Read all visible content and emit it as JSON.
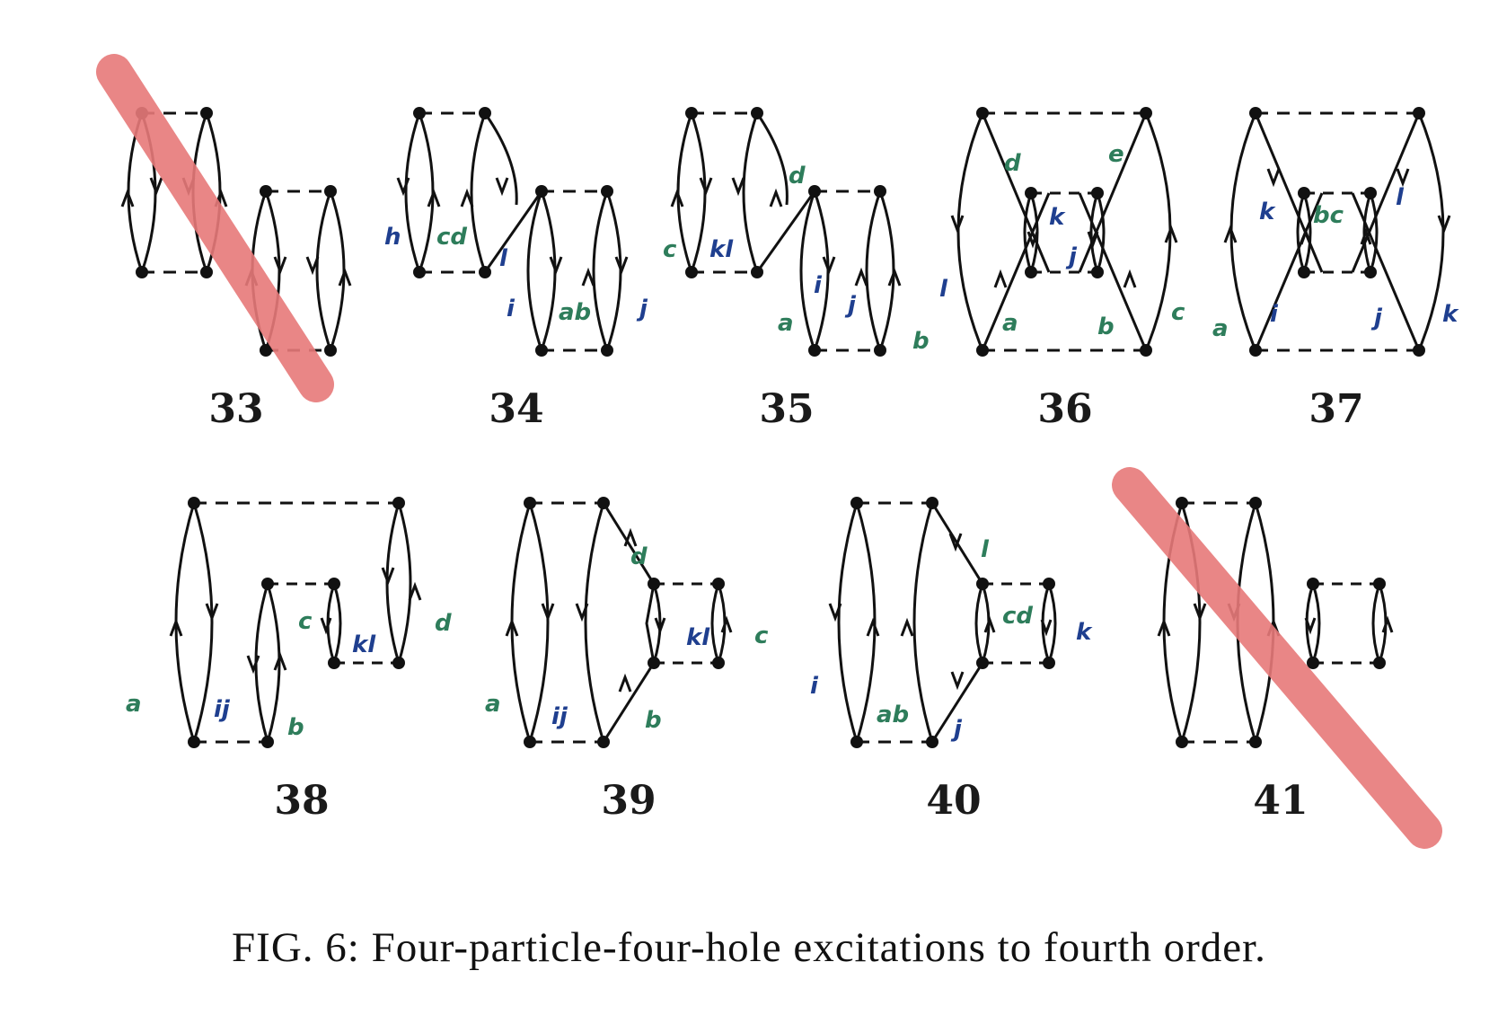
{
  "figure": {
    "caption": "FIG. 6: Four-particle-four-hole excitations to fourth order.",
    "diagram_numbers": [
      "33",
      "34",
      "35",
      "36",
      "37",
      "38",
      "39",
      "40",
      "41"
    ],
    "crossed_out": [
      "33",
      "41"
    ],
    "colors": {
      "line": "#111111",
      "blue_ink": "#1f3f8f",
      "green_ink": "#2e7d5b",
      "strike": "#e77a7a"
    }
  },
  "annotations": {
    "d34": {
      "n": "h",
      "cd": "cd",
      "l": "l",
      "i": "i",
      "ab": "ab",
      "j": "j"
    },
    "d35": {
      "c": "c",
      "kl": "kl",
      "d": "d",
      "a": "a",
      "i": "i",
      "j": "j",
      "b": "b"
    },
    "d36": {
      "d": "d",
      "e": "e",
      "k": "k",
      "j": "j",
      "l": "l",
      "a": "a",
      "b": "b",
      "c": "c"
    },
    "d37": {
      "k1": "k",
      "bc": "bc",
      "l": "l",
      "a": "a",
      "i": "i",
      "j": "j",
      "k2": "k"
    },
    "d38": {
      "a": "a",
      "ij": "ij",
      "b": "b",
      "c": "c",
      "kl": "kl",
      "d": "d"
    },
    "d39": {
      "d": "d",
      "a": "a",
      "ij": "ij",
      "b": "b",
      "kl": "kl",
      "c": "c"
    },
    "d40": {
      "l": "l",
      "i": "i",
      "ab": "ab",
      "j": "j",
      "cd": "cd",
      "k": "k"
    }
  }
}
